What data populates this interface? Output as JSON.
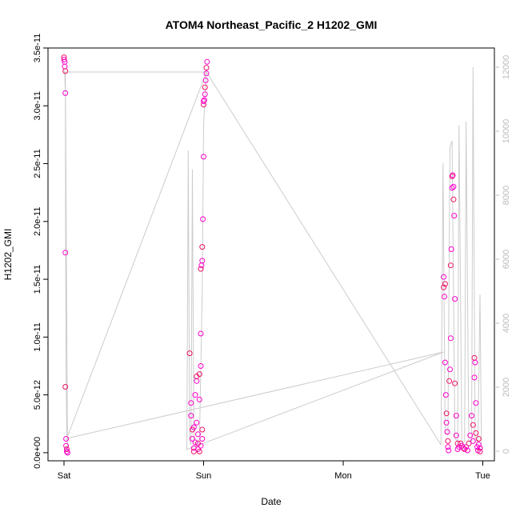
{
  "chart_data": {
    "type": "scatter",
    "title": "ATOM4 Northeast_Pacific_2 H1202_GMI",
    "xlabel": "Date",
    "ylabel": "H1202_GMI",
    "x_ticks": [
      "Sat",
      "Sun",
      "Mon",
      "Tue"
    ],
    "x_range_days": [
      0,
      3.08
    ],
    "ylim": [
      -7e-13,
      3.5e-11
    ],
    "y_ticks": [
      "0.0e+00",
      "5.0e-12",
      "1.0e-11",
      "1.5e-11",
      "2.0e-11",
      "2.5e-11",
      "3.0e-11",
      "3.5e-11"
    ],
    "y_tick_values": [
      0,
      5e-12,
      1e-11,
      1.5e-11,
      2e-11,
      2.5e-11,
      3e-11,
      3.5e-11
    ],
    "y2_ticks": [
      "0",
      "2000",
      "4000",
      "6000",
      "8000",
      "10000",
      "12000"
    ],
    "y2_tick_values": [
      0,
      2000,
      4000,
      6000,
      8000,
      10000,
      12000
    ],
    "y2lim": [
      -300,
      12600
    ],
    "colors": {
      "points": "#ff00cc",
      "points_alt": "#ee1166",
      "altitude_line": "#cccccc",
      "axis": "#000000",
      "right_axis": "#bbbbbb"
    },
    "series": [
      {
        "values": [
          [
            0.0,
            3.4e-11
          ],
          [
            0.0,
            3.42e-11
          ],
          [
            0.005,
            3.38e-11
          ],
          [
            0.005,
            3.34e-11
          ],
          [
            0.01,
            3.3e-11
          ],
          [
            0.01,
            3.11e-11
          ],
          [
            0.01,
            1.73e-11
          ],
          [
            0.01,
            5.7e-12
          ],
          [
            0.015,
            1.2e-12
          ],
          [
            0.015,
            6e-13
          ],
          [
            0.02,
            3e-13
          ],
          [
            0.02,
            1e-13
          ],
          [
            0.025,
            0.0
          ],
          [
            0.9,
            8.6e-12
          ],
          [
            0.91,
            4.3e-12
          ],
          [
            0.91,
            3.2e-12
          ],
          [
            0.92,
            2e-12
          ],
          [
            0.92,
            1.2e-12
          ],
          [
            0.93,
            4e-13
          ],
          [
            0.93,
            1e-13
          ],
          [
            0.94,
            5e-12
          ],
          [
            0.95,
            6.2e-12
          ],
          [
            0.95,
            6.6e-12
          ],
          [
            0.95,
            2.6e-12
          ],
          [
            0.96,
            1.6e-12
          ],
          [
            0.96,
            8e-13
          ],
          [
            0.96,
            3e-13
          ],
          [
            0.97,
            4.6e-12
          ],
          [
            0.97,
            6.8e-12
          ],
          [
            0.98,
            7.5e-12
          ],
          [
            0.98,
            1.03e-11
          ],
          [
            0.98,
            1.59e-11
          ],
          [
            0.985,
            1.62e-11
          ],
          [
            0.99,
            1.66e-11
          ],
          [
            0.99,
            1.78e-11
          ],
          [
            0.995,
            2.02e-11
          ],
          [
            1.0,
            2.56e-11
          ],
          [
            1.0,
            3.01e-11
          ],
          [
            1.005,
            3.05e-11
          ],
          [
            1.01,
            3.1e-11
          ],
          [
            1.01,
            3.16e-11
          ],
          [
            1.015,
            3.22e-11
          ],
          [
            1.02,
            3.28e-11
          ],
          [
            1.02,
            3.33e-11
          ],
          [
            1.025,
            3.38e-11
          ],
          [
            1.0,
            3.04e-11
          ],
          [
            0.99,
            2e-12
          ],
          [
            0.99,
            1.2e-12
          ],
          [
            0.98,
            6e-13
          ],
          [
            0.97,
            1e-13
          ],
          [
            0.94,
            9e-13
          ],
          [
            0.93,
            2.2e-12
          ],
          [
            2.72,
            1.43e-11
          ],
          [
            2.72,
            1.52e-11
          ],
          [
            2.725,
            1.35e-11
          ],
          [
            2.73,
            1.46e-11
          ],
          [
            2.73,
            7.8e-12
          ],
          [
            2.735,
            5e-12
          ],
          [
            2.74,
            3.4e-12
          ],
          [
            2.74,
            2.6e-12
          ],
          [
            2.745,
            1.8e-12
          ],
          [
            2.75,
            1e-12
          ],
          [
            2.75,
            5e-13
          ],
          [
            2.755,
            2e-13
          ],
          [
            2.76,
            6.2e-12
          ],
          [
            2.765,
            7.2e-12
          ],
          [
            2.77,
            9.9e-12
          ],
          [
            2.77,
            1.62e-11
          ],
          [
            2.775,
            1.76e-11
          ],
          [
            2.78,
            2.29e-11
          ],
          [
            2.78,
            2.39e-11
          ],
          [
            2.785,
            2.4e-11
          ],
          [
            2.79,
            2.3e-11
          ],
          [
            2.79,
            2.19e-11
          ],
          [
            2.795,
            2.05e-11
          ],
          [
            2.8,
            1.33e-11
          ],
          [
            2.8,
            6e-12
          ],
          [
            2.81,
            3.2e-12
          ],
          [
            2.81,
            1.5e-12
          ],
          [
            2.82,
            8e-13
          ],
          [
            2.82,
            3e-13
          ],
          [
            2.83,
            5e-13
          ],
          [
            2.84,
            8e-13
          ],
          [
            2.85,
            6e-13
          ],
          [
            2.86,
            4e-13
          ],
          [
            2.87,
            3e-13
          ],
          [
            2.88,
            5e-13
          ],
          [
            2.89,
            2e-13
          ],
          [
            2.9,
            8e-13
          ],
          [
            2.91,
            1.5e-12
          ],
          [
            2.92,
            3.2e-12
          ],
          [
            2.93,
            2.4e-12
          ],
          [
            2.93,
            1e-12
          ],
          [
            2.94,
            6.5e-12
          ],
          [
            2.94,
            8.2e-12
          ],
          [
            2.945,
            7.8e-12
          ],
          [
            2.95,
            4.3e-12
          ],
          [
            2.95,
            1.7e-12
          ],
          [
            2.96,
            5e-13
          ],
          [
            2.965,
            2e-13
          ],
          [
            2.97,
            1.2e-12
          ],
          [
            2.97,
            7e-13
          ],
          [
            2.98,
            4e-13
          ],
          [
            2.98,
            1e-13
          ]
        ]
      }
    ],
    "altitude_line": [
      [
        0.0,
        11900
      ],
      [
        0.005,
        11800
      ],
      [
        0.01,
        11200
      ],
      [
        0.012,
        6000
      ],
      [
        0.015,
        2500
      ],
      [
        0.02,
        600
      ],
      [
        0.025,
        50
      ],
      [
        0.01,
        11850
      ],
      [
        1.02,
        11850
      ],
      [
        0.02,
        400
      ],
      [
        2.72,
        3100
      ],
      [
        0.88,
        50
      ],
      [
        0.89,
        9400
      ],
      [
        0.9,
        300
      ],
      [
        0.91,
        200
      ],
      [
        0.92,
        8800
      ],
      [
        0.93,
        300
      ],
      [
        0.95,
        200
      ],
      [
        0.97,
        300
      ],
      [
        0.99,
        5000
      ],
      [
        1.0,
        10200
      ],
      [
        1.01,
        11000
      ],
      [
        1.02,
        11850
      ],
      [
        2.7,
        200
      ],
      [
        2.715,
        9000
      ],
      [
        2.73,
        600
      ],
      [
        2.75,
        500
      ],
      [
        2.765,
        9500
      ],
      [
        2.78,
        9700
      ],
      [
        2.8,
        400
      ],
      [
        2.82,
        300
      ],
      [
        2.83,
        10200
      ],
      [
        2.85,
        300
      ],
      [
        2.87,
        300
      ],
      [
        2.88,
        10300
      ],
      [
        2.9,
        300
      ],
      [
        2.92,
        300
      ],
      [
        2.93,
        12000
      ],
      [
        2.945,
        300
      ],
      [
        2.965,
        300
      ],
      [
        2.98,
        4900
      ],
      [
        2.99,
        100
      ]
    ]
  }
}
